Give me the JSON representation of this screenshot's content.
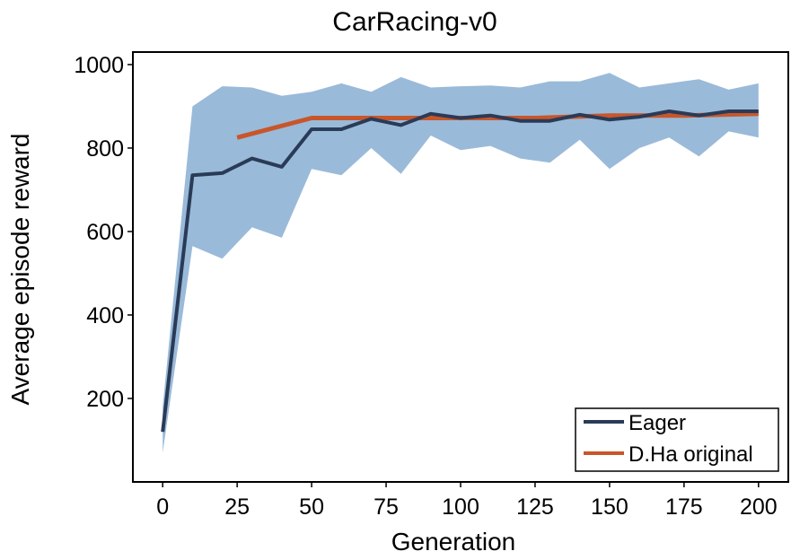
{
  "chart_data": {
    "type": "line",
    "title": "CarRacing-v0",
    "xlabel": "Generation",
    "ylabel": "Average episode reward",
    "xlim": [
      -10,
      210
    ],
    "ylim": [
      0,
      1030
    ],
    "xticks": [
      0,
      25,
      50,
      75,
      100,
      125,
      150,
      175,
      200
    ],
    "yticks": [
      200,
      400,
      600,
      800,
      1000
    ],
    "grid": false,
    "legend": "bottom-right",
    "colors": {
      "eager_line": "#2a3b57",
      "band": "#8fb3d5",
      "dha_line": "#c8562b"
    },
    "band": {
      "x": [
        0,
        10,
        20,
        30,
        40,
        50,
        60,
        70,
        80,
        90,
        100,
        110,
        120,
        130,
        140,
        150,
        160,
        170,
        180,
        190,
        200
      ],
      "upper": [
        180,
        900,
        948,
        945,
        925,
        935,
        955,
        935,
        970,
        945,
        948,
        950,
        945,
        960,
        960,
        980,
        945,
        955,
        965,
        940,
        955
      ],
      "lower": [
        70,
        565,
        535,
        610,
        585,
        750,
        735,
        800,
        738,
        830,
        795,
        805,
        775,
        765,
        820,
        750,
        800,
        825,
        780,
        840,
        825
      ]
    },
    "series": [
      {
        "name": "Eager",
        "x": [
          0,
          10,
          20,
          30,
          40,
          50,
          60,
          70,
          80,
          90,
          100,
          110,
          120,
          130,
          140,
          150,
          160,
          170,
          180,
          190,
          200
        ],
        "values": [
          120,
          735,
          740,
          775,
          755,
          845,
          845,
          870,
          855,
          882,
          872,
          878,
          865,
          865,
          880,
          868,
          875,
          888,
          878,
          888,
          888
        ]
      },
      {
        "name": "D.Ha original",
        "x": [
          25,
          50,
          75,
          100,
          125,
          150,
          175,
          200
        ],
        "values": [
          825,
          872,
          872,
          872,
          872,
          878,
          878,
          882
        ]
      }
    ]
  }
}
